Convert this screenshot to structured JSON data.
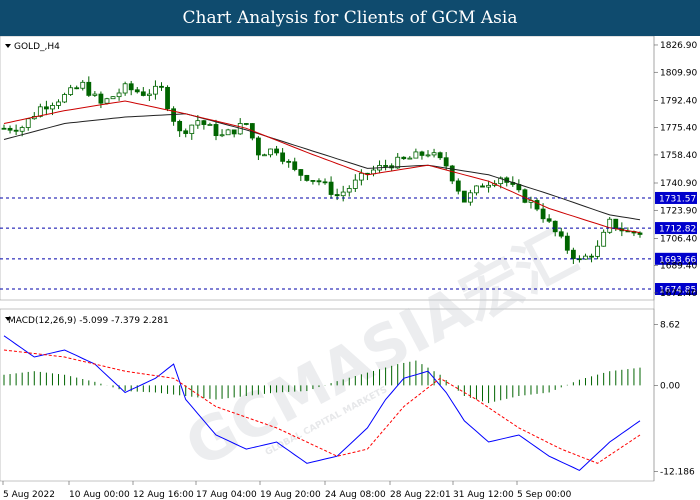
{
  "header": {
    "title": "Chart Analysis for Clients of GCM Asia",
    "bg": "#0f4b6e"
  },
  "watermark": {
    "text": "GCMASIA宏汇",
    "sub": "GLOBAL CAPITAL MARKETS"
  },
  "chart_data": [
    {
      "type": "candlestick",
      "symbol": "GOLD_,H4",
      "y_ticks": [
        1826.9,
        1809.9,
        1792.4,
        1775.4,
        1758.4,
        1740.9,
        1723.9,
        1706.4,
        1689.4,
        1672.4
      ],
      "ylim": [
        1668,
        1830
      ],
      "x_ticks": [
        "5 Aug 2022",
        "10 Aug 00:00",
        "12 Aug 16:00",
        "17 Aug 04:00",
        "19 Aug 20:00",
        "24 Aug 08:00",
        "28 Aug 22:01",
        "31 Aug 12:00",
        "5 Sep 00:00"
      ],
      "levels": [
        {
          "label": "1731.57",
          "value": 1731.57
        },
        {
          "label": "1712.82",
          "value": 1712.82
        },
        {
          "label": "1693.66",
          "value": 1693.66
        },
        {
          "label": "1674.85",
          "value": 1674.85
        }
      ],
      "close_path": [
        [
          0,
          1775
        ],
        [
          3,
          1776
        ],
        [
          6,
          1788
        ],
        [
          10,
          1795
        ],
        [
          13,
          1802
        ],
        [
          16,
          1790
        ],
        [
          20,
          1800
        ],
        [
          23,
          1797
        ],
        [
          26,
          1799
        ],
        [
          29,
          1772
        ],
        [
          32,
          1780
        ],
        [
          36,
          1770
        ],
        [
          40,
          1778
        ],
        [
          42,
          1760
        ],
        [
          45,
          1762
        ],
        [
          48,
          1748
        ],
        [
          52,
          1742
        ],
        [
          55,
          1733
        ],
        [
          57,
          1738
        ],
        [
          60,
          1747
        ],
        [
          63,
          1752
        ],
        [
          66,
          1755
        ],
        [
          70,
          1760
        ],
        [
          73,
          1752
        ],
        [
          76,
          1730
        ],
        [
          79,
          1740
        ],
        [
          82,
          1745
        ],
        [
          85,
          1734
        ],
        [
          88,
          1726
        ],
        [
          91,
          1710
        ],
        [
          93,
          1700
        ],
        [
          95,
          1692
        ],
        [
          98,
          1700
        ],
        [
          100,
          1716
        ],
        [
          103,
          1710
        ],
        [
          105,
          1710
        ]
      ],
      "ma_fast": [
        [
          0,
          1778
        ],
        [
          10,
          1786
        ],
        [
          20,
          1792
        ],
        [
          30,
          1784
        ],
        [
          40,
          1775
        ],
        [
          50,
          1760
        ],
        [
          60,
          1746
        ],
        [
          70,
          1752
        ],
        [
          80,
          1742
        ],
        [
          90,
          1725
        ],
        [
          100,
          1713
        ],
        [
          105,
          1710
        ]
      ],
      "ma_slow": [
        [
          0,
          1768
        ],
        [
          10,
          1778
        ],
        [
          20,
          1782
        ],
        [
          30,
          1784
        ],
        [
          40,
          1774
        ],
        [
          50,
          1762
        ],
        [
          60,
          1750
        ],
        [
          70,
          1752
        ],
        [
          80,
          1746
        ],
        [
          90,
          1734
        ],
        [
          100,
          1721
        ],
        [
          105,
          1718
        ]
      ],
      "colors": {
        "candle": "#006400",
        "ma_fast": "#cc0000",
        "ma_slow": "#222222",
        "level_line": "#0000aa",
        "level_box": "#0000cc"
      }
    },
    {
      "type": "macd",
      "label": "MACD(12,26,9) -5.099 -7.379 2.281",
      "y_ticks": [
        8.62,
        0.0,
        -12.186
      ],
      "ylim": [
        -13.5,
        10.5
      ],
      "macd": [
        [
          0,
          7
        ],
        [
          5,
          4
        ],
        [
          10,
          5
        ],
        [
          15,
          3
        ],
        [
          20,
          -1
        ],
        [
          25,
          1
        ],
        [
          28,
          3
        ],
        [
          30,
          -2
        ],
        [
          35,
          -7
        ],
        [
          40,
          -9
        ],
        [
          45,
          -8
        ],
        [
          50,
          -11
        ],
        [
          55,
          -10
        ],
        [
          60,
          -6
        ],
        [
          63,
          -2
        ],
        [
          66,
          1
        ],
        [
          70,
          2
        ],
        [
          73,
          -1
        ],
        [
          76,
          -5
        ],
        [
          80,
          -8
        ],
        [
          85,
          -7
        ],
        [
          90,
          -10
        ],
        [
          95,
          -12
        ],
        [
          100,
          -8
        ],
        [
          105,
          -5
        ]
      ],
      "signal": [
        [
          0,
          5
        ],
        [
          10,
          4
        ],
        [
          20,
          2
        ],
        [
          28,
          1
        ],
        [
          35,
          -3
        ],
        [
          45,
          -6
        ],
        [
          55,
          -10
        ],
        [
          60,
          -9
        ],
        [
          66,
          -3
        ],
        [
          72,
          1
        ],
        [
          78,
          -2
        ],
        [
          85,
          -6
        ],
        [
          92,
          -9
        ],
        [
          98,
          -11
        ],
        [
          105,
          -7
        ]
      ],
      "histogram": [
        [
          0,
          1.5
        ],
        [
          5,
          2
        ],
        [
          10,
          1.5
        ],
        [
          15,
          0.5
        ],
        [
          20,
          -0.8
        ],
        [
          25,
          -1
        ],
        [
          30,
          -1.5
        ],
        [
          35,
          -2
        ],
        [
          40,
          -1.5
        ],
        [
          45,
          -1
        ],
        [
          50,
          -0.8
        ],
        [
          55,
          0.6
        ],
        [
          60,
          1.8
        ],
        [
          65,
          3
        ],
        [
          68,
          3.5
        ],
        [
          72,
          1.5
        ],
        [
          76,
          -1.5
        ],
        [
          80,
          -2.5
        ],
        [
          85,
          -1.5
        ],
        [
          90,
          -1
        ],
        [
          95,
          0.8
        ],
        [
          100,
          2
        ],
        [
          105,
          2.5
        ]
      ],
      "colors": {
        "macd": "#0000ff",
        "signal": "#ff0000",
        "histogram": "#006400"
      }
    }
  ]
}
